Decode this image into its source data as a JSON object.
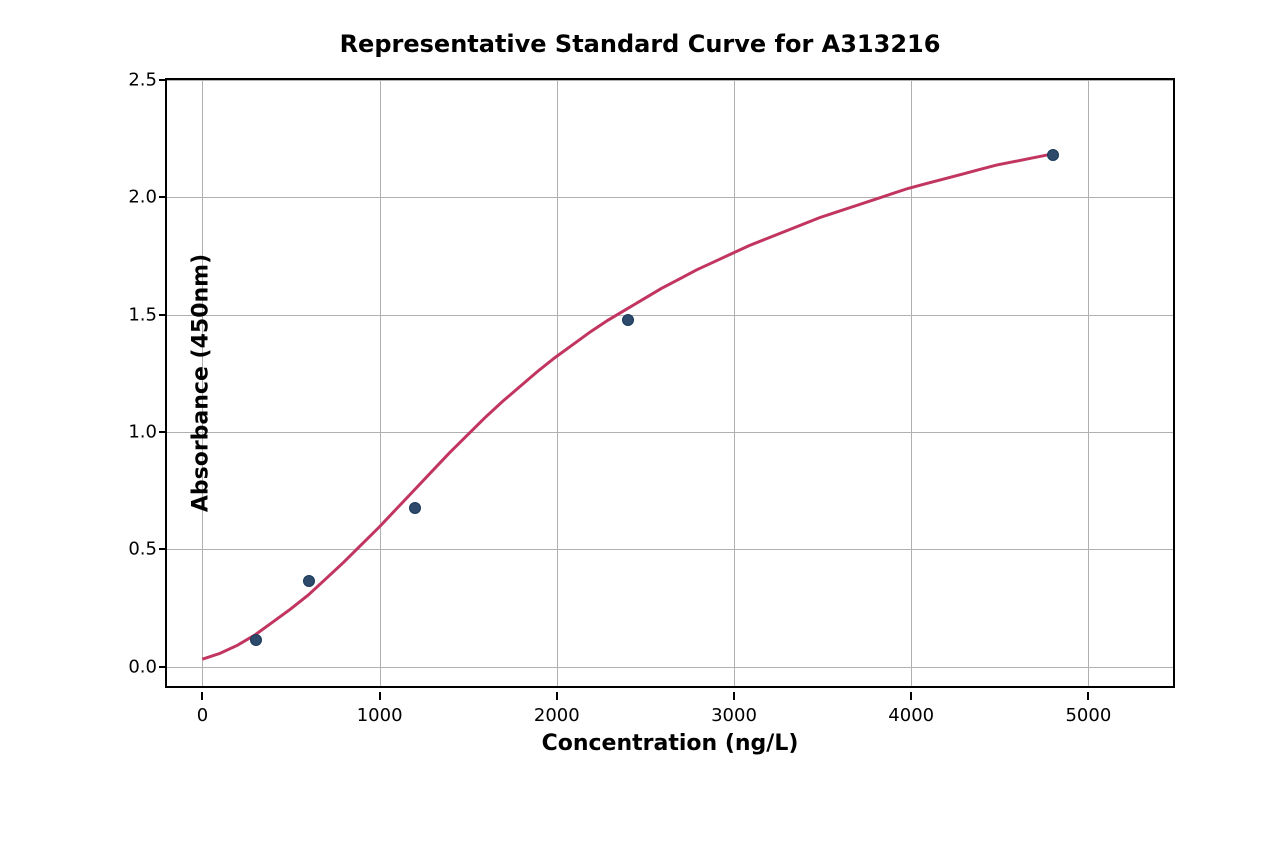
{
  "chart": {
    "type": "scatter-with-curve",
    "title": "Representative Standard Curve for A313216",
    "title_fontsize": 24,
    "title_fontweight": "bold",
    "xlabel": "Concentration (ng/L)",
    "ylabel": "Absorbance (450nm)",
    "label_fontsize": 22,
    "label_fontweight": "bold",
    "tick_fontsize": 18,
    "background_color": "#ffffff",
    "border_color": "#000000",
    "grid_color": "#b0b0b0",
    "grid_on": true,
    "xlim": [
      -200,
      5500
    ],
    "ylim": [
      -0.1,
      2.5
    ],
    "xtick_positions": [
      0,
      1000,
      2000,
      3000,
      4000,
      5000
    ],
    "xtick_labels": [
      "0",
      "1000",
      "2000",
      "3000",
      "4000",
      "5000"
    ],
    "ytick_positions": [
      0.0,
      0.5,
      1.0,
      1.5,
      2.0,
      2.5
    ],
    "ytick_labels": [
      "0.0",
      "0.5",
      "1.0",
      "1.5",
      "2.0",
      "2.5"
    ],
    "scatter_points": {
      "x": [
        300,
        600,
        1200,
        2400,
        4800
      ],
      "y": [
        0.115,
        0.365,
        0.675,
        1.475,
        2.18
      ]
    },
    "marker_color": "#2d4a6a",
    "marker_size": 12,
    "curve_color": "#c13560",
    "curve_width": 3,
    "curve_points_x": [
      0,
      100,
      200,
      300,
      400,
      500,
      600,
      700,
      800,
      900,
      1000,
      1100,
      1200,
      1300,
      1400,
      1500,
      1600,
      1700,
      1800,
      1900,
      2000,
      2100,
      2200,
      2300,
      2400,
      2500,
      2600,
      2700,
      2800,
      2900,
      3000,
      3100,
      3200,
      3300,
      3400,
      3500,
      3600,
      3700,
      3800,
      3900,
      4000,
      4100,
      4200,
      4300,
      4400,
      4500,
      4600,
      4700,
      4800
    ],
    "curve_points_y": [
      0.015,
      0.04,
      0.075,
      0.12,
      0.175,
      0.23,
      0.29,
      0.36,
      0.43,
      0.505,
      0.58,
      0.66,
      0.74,
      0.82,
      0.9,
      0.975,
      1.05,
      1.12,
      1.185,
      1.25,
      1.31,
      1.365,
      1.42,
      1.47,
      1.515,
      1.56,
      1.605,
      1.645,
      1.685,
      1.72,
      1.755,
      1.79,
      1.82,
      1.85,
      1.88,
      1.91,
      1.935,
      1.96,
      1.985,
      2.01,
      2.035,
      2.055,
      2.075,
      2.095,
      2.115,
      2.135,
      2.15,
      2.165,
      2.18
    ]
  }
}
